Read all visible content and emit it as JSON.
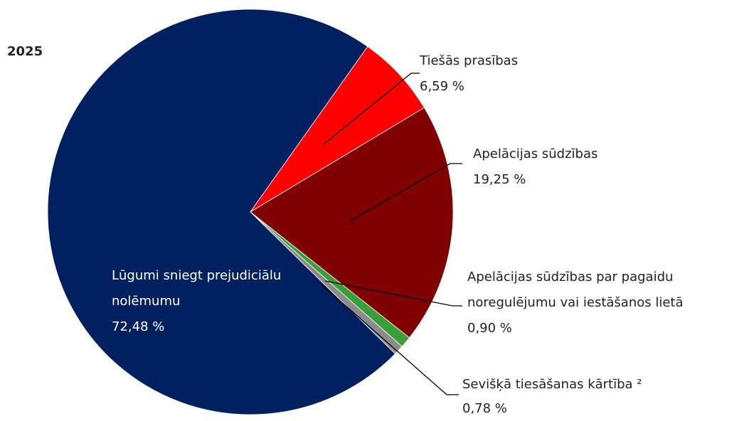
{
  "chart_data": {
    "type": "pie",
    "title": "2025",
    "categories": [
      "Lūgumi sniegt prejudiciālu nolēmumu",
      "Tiešās prasības",
      "Apelācijas sūdzības",
      "Apelācijas sūdzības par pagaidu noregulējumu vai iestāšanos lietā",
      "Sevišķā tiesāšanas kārtība ²"
    ],
    "values": [
      72.48,
      6.59,
      19.25,
      0.9,
      0.78
    ],
    "value_labels": [
      "72,48 %",
      "6,59 %",
      "19,25 %",
      "0,90 %",
      "0,78 %"
    ],
    "colors": [
      "#002060",
      "#ff0000",
      "#800000",
      "#3a9e3a",
      "#8c8c8c"
    ]
  }
}
